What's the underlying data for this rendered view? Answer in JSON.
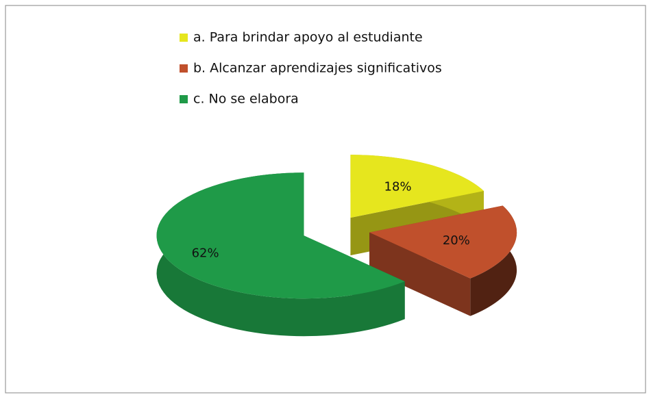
{
  "chart_data": {
    "type": "pie",
    "categories": [
      "a. Para brindar apoyo al estudiante",
      "b. Alcanzar aprendizajes significativos",
      "c. No se elabora"
    ],
    "values": [
      18,
      20,
      62
    ],
    "value_labels": [
      "18%",
      "20%",
      "62%"
    ],
    "colors": [
      "#e6e61e",
      "#c0502c",
      "#1f9a48"
    ],
    "legend": "top"
  }
}
